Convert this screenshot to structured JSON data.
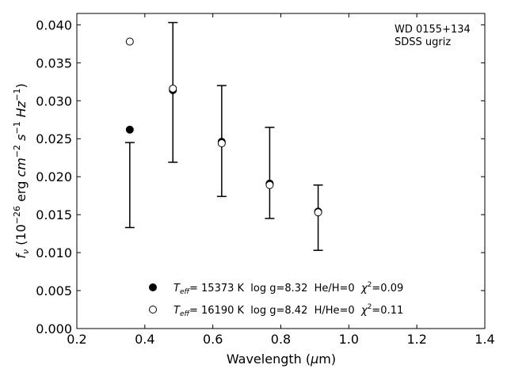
{
  "chart_data": {
    "type": "scatter",
    "xlabel_main": "Wavelength (",
    "xlabel_mu": "μ",
    "xlabel_unit": "m)",
    "ylabel_f": "f",
    "ylabel_nu": "ν",
    "ylabel_pre": " (10",
    "ylabel_exp26": "−26",
    "ylabel_erg": " erg ",
    "ylabel_cm": "cm",
    "ylabel_exp2": "−2",
    "ylabel_s": " s",
    "ylabel_exp1": "−1",
    "ylabel_hz": " Hz",
    "ylabel_exp1b": "−1",
    "ylabel_close": ")",
    "xlim": [
      0.2,
      1.4
    ],
    "ylim": [
      0.0,
      0.0415
    ],
    "xticks": [
      "0.2",
      "0.4",
      "0.6",
      "0.8",
      "1.0",
      "1.2",
      "1.4"
    ],
    "xtick_values": [
      0.2,
      0.4,
      0.6,
      0.8,
      1.0,
      1.2,
      1.4
    ],
    "yticks": [
      "0.000",
      "0.005",
      "0.010",
      "0.015",
      "0.020",
      "0.025",
      "0.030",
      "0.035",
      "0.040"
    ],
    "ytick_values": [
      0.0,
      0.005,
      0.01,
      0.015,
      0.02,
      0.025,
      0.03,
      0.035,
      0.04
    ],
    "grid": false,
    "annotation_line1": "WD 0155+134",
    "annotation_line2": "SDSS ugriz",
    "observed": {
      "x": [
        0.3557,
        0.4825,
        0.6261,
        0.7672,
        0.9097
      ],
      "y": [
        0.0189,
        0.0311,
        0.0247,
        0.0205,
        0.0146
      ],
      "yerr": [
        0.0056,
        0.0092,
        0.0073,
        0.006,
        0.0043
      ]
    },
    "series": [
      {
        "marker": "filled",
        "color": "#000000",
        "x": [
          0.3557,
          0.4825,
          0.6261,
          0.7672,
          0.9097
        ],
        "y": [
          0.0262,
          0.0314,
          0.0246,
          0.0191,
          0.0154
        ]
      },
      {
        "marker": "open",
        "color": "#000000",
        "x": [
          0.3557,
          0.4825,
          0.6261,
          0.7672,
          0.9097
        ],
        "y": [
          0.0378,
          0.0316,
          0.0244,
          0.0189,
          0.0153
        ]
      }
    ],
    "legend": [
      {
        "marker": "filled",
        "teff_sym": "T",
        "teff_sub": "eff",
        "text": "= 15373 K  log g=8.32  He/H=0  ",
        "chi_sym": "χ",
        "chi_sup": "2",
        "chi_val": "=0.09"
      },
      {
        "marker": "open",
        "teff_sym": "T",
        "teff_sub": "eff",
        "text": "= 16190 K  log g=8.42  H/He=0  ",
        "chi_sym": "χ",
        "chi_sup": "2",
        "chi_val": "=0.11"
      }
    ],
    "legend_position": "lower-center"
  }
}
